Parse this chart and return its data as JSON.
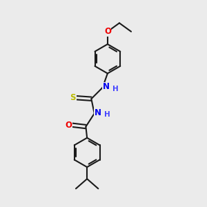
{
  "background_color": "#ebebeb",
  "bond_color": "#1a1a1a",
  "bond_width": 1.5,
  "atom_colors": {
    "N": "#0000ee",
    "O": "#ee0000",
    "S": "#bbbb00",
    "H": "#4444ff"
  },
  "font_size_atom": 8.5,
  "font_size_H": 7.5,
  "fig_width": 3.0,
  "fig_height": 3.0,
  "dpi": 100
}
